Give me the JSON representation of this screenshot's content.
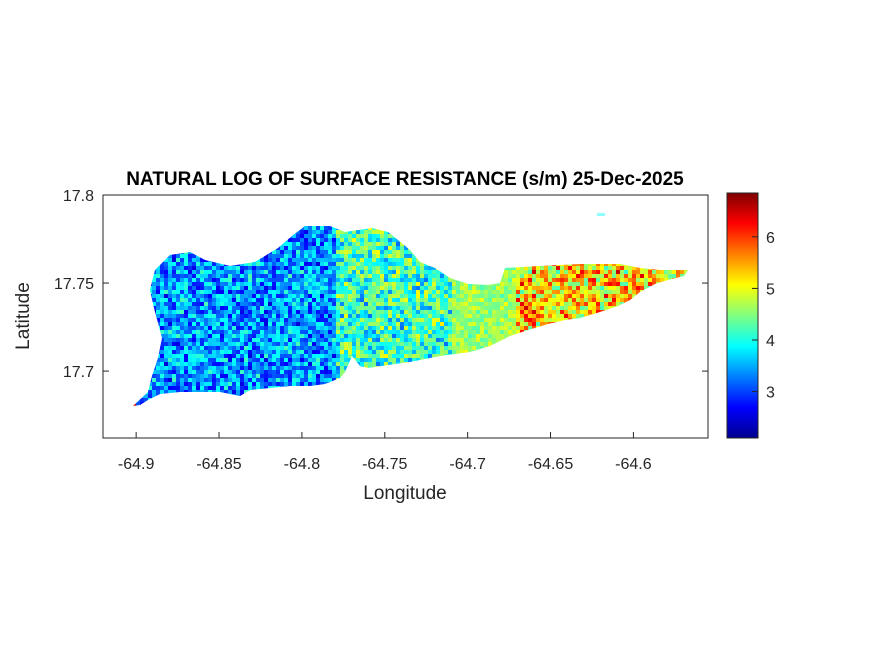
{
  "chart_data": {
    "type": "heatmap",
    "title": "NATURAL LOG OF SURFACE RESISTANCE (s/m) 25-Dec-2025",
    "xlabel": "Longitude",
    "ylabel": "Latitude",
    "xlim": [
      -64.92,
      -64.555
    ],
    "ylim": [
      17.662,
      17.8
    ],
    "x_ticks": [
      -64.9,
      -64.85,
      -64.8,
      -64.75,
      -64.7,
      -64.65,
      -64.6
    ],
    "x_tick_labels": [
      "-64.9",
      "-64.85",
      "-64.8",
      "-64.75",
      "-64.7",
      "-64.65",
      "-64.6"
    ],
    "y_ticks": [
      17.7,
      17.75,
      17.8
    ],
    "y_tick_labels": [
      "17.7",
      "17.75",
      "17.8"
    ],
    "colorbar": {
      "colormap": "jet",
      "range": [
        2.1,
        6.85
      ],
      "ticks": [
        3,
        4,
        5,
        6
      ],
      "tick_labels": [
        "3",
        "4",
        "5",
        "6"
      ]
    },
    "grid": false,
    "regions": [
      {
        "lon_min": -64.9,
        "lon_max": -64.78,
        "value_range": [
          2.5,
          4.0
        ],
        "typical": 3.4
      },
      {
        "lon_min": -64.78,
        "lon_max": -64.71,
        "value_range": [
          3.2,
          4.8
        ],
        "typical": 4.2
      },
      {
        "lon_min": -64.71,
        "lon_max": -64.67,
        "value_range": [
          4.2,
          5.0
        ],
        "typical": 4.6
      },
      {
        "lon_min": -64.67,
        "lon_max": -64.565,
        "value_range": [
          4.5,
          6.5
        ],
        "typical": 5.2
      }
    ]
  }
}
